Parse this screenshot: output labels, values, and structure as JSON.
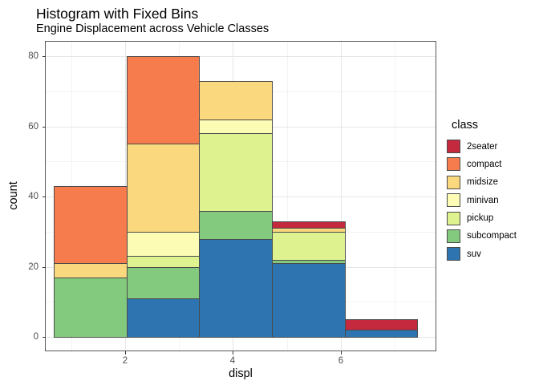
{
  "title": "Histogram with Fixed Bins",
  "subtitle": "Engine Displacement across Vehicle Classes",
  "chart_data": {
    "type": "bar",
    "variant": "stacked-histogram",
    "title": "Histogram with Fixed Bins",
    "subtitle": "Engine Displacement across Vehicle Classes",
    "xlabel": "displ",
    "ylabel": "count",
    "xlim": [
      0.53,
      7.76
    ],
    "ylim": [
      0,
      80
    ],
    "x_ticks": [
      2,
      4,
      6
    ],
    "x_minor_ticks": [
      1,
      3,
      5,
      7
    ],
    "y_ticks": [
      0,
      20,
      40,
      60,
      80
    ],
    "y_minor_ticks": [
      10,
      30,
      50,
      70
    ],
    "grid": true,
    "legend_position": "right",
    "bin_width": 1.35,
    "bin_edges": [
      0.675,
      2.025,
      3.375,
      4.725,
      6.075,
      7.425
    ],
    "stack_order_bottom_to_top": [
      "suv",
      "subcompact",
      "pickup",
      "minivan",
      "midsize",
      "compact",
      "2seater"
    ],
    "bins": [
      {
        "x0": 0.675,
        "x1": 2.025,
        "total": 43,
        "segments": [
          {
            "class": "subcompact",
            "count": 17
          },
          {
            "class": "midsize",
            "count": 4
          },
          {
            "class": "compact",
            "count": 22
          }
        ]
      },
      {
        "x0": 2.025,
        "x1": 3.375,
        "total": 80,
        "segments": [
          {
            "class": "suv",
            "count": 11
          },
          {
            "class": "subcompact",
            "count": 9
          },
          {
            "class": "pickup",
            "count": 3
          },
          {
            "class": "minivan",
            "count": 7
          },
          {
            "class": "midsize",
            "count": 25
          },
          {
            "class": "compact",
            "count": 25
          }
        ]
      },
      {
        "x0": 3.375,
        "x1": 4.725,
        "total": 73,
        "segments": [
          {
            "class": "suv",
            "count": 28
          },
          {
            "class": "subcompact",
            "count": 8
          },
          {
            "class": "pickup",
            "count": 22
          },
          {
            "class": "minivan",
            "count": 4
          },
          {
            "class": "midsize",
            "count": 11
          }
        ]
      },
      {
        "x0": 4.725,
        "x1": 6.075,
        "total": 33,
        "segments": [
          {
            "class": "suv",
            "count": 21
          },
          {
            "class": "subcompact",
            "count": 1
          },
          {
            "class": "pickup",
            "count": 8
          },
          {
            "class": "midsize",
            "count": 1
          },
          {
            "class": "2seater",
            "count": 2
          }
        ]
      },
      {
        "x0": 6.075,
        "x1": 7.425,
        "total": 5,
        "segments": [
          {
            "class": "suv",
            "count": 2
          },
          {
            "class": "2seater",
            "count": 3
          }
        ]
      }
    ],
    "colors": {
      "2seater": "#C5293D",
      "compact": "#F67B4D",
      "midsize": "#FAD97E",
      "minivan": "#FCFCB4",
      "pickup": "#DEF28F",
      "subcompact": "#84CA7E",
      "suv": "#2E74B1"
    },
    "bar_border_color": "#4A4A4A",
    "panel_border_color": "#595959",
    "grid_major_color": "#E6E6E6",
    "grid_minor_color": "#F3F3F3"
  },
  "legend": {
    "title": "class",
    "entries": [
      {
        "label": "2seater",
        "color": "#C5293D"
      },
      {
        "label": "compact",
        "color": "#F67B4D"
      },
      {
        "label": "midsize",
        "color": "#FAD97E"
      },
      {
        "label": "minivan",
        "color": "#FCFCB4"
      },
      {
        "label": "pickup",
        "color": "#DEF28F"
      },
      {
        "label": "subcompact",
        "color": "#84CA7E"
      },
      {
        "label": "suv",
        "color": "#2E74B1"
      }
    ]
  }
}
